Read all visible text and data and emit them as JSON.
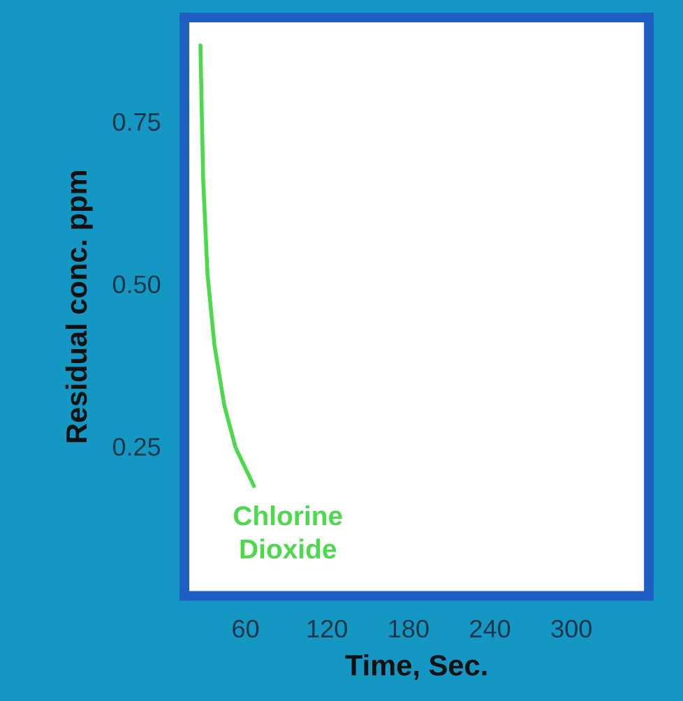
{
  "chart_data": {
    "type": "line",
    "xlabel": "Time, Sec.",
    "ylabel": "Residual conc. ppm",
    "xlim": [
      15,
      357
    ],
    "ylim": [
      0.02,
      0.91
    ],
    "xticks": [
      60,
      120,
      180,
      240,
      300
    ],
    "yticks": [
      {
        "value": 0.25,
        "label": "0.25"
      },
      {
        "value": 0.5,
        "label": "0.50"
      },
      {
        "value": 0.75,
        "label": "0.75"
      }
    ],
    "grid": false,
    "legend": false,
    "series": [
      {
        "name": "Chlorine Dioxide",
        "color": "#4cd94c",
        "x": [
          26.8,
          28.8,
          32,
          37.1,
          44.4,
          52.7,
          66.2
        ],
        "values": [
          0.867,
          0.661,
          0.515,
          0.406,
          0.313,
          0.248,
          0.189
        ]
      }
    ]
  }
}
